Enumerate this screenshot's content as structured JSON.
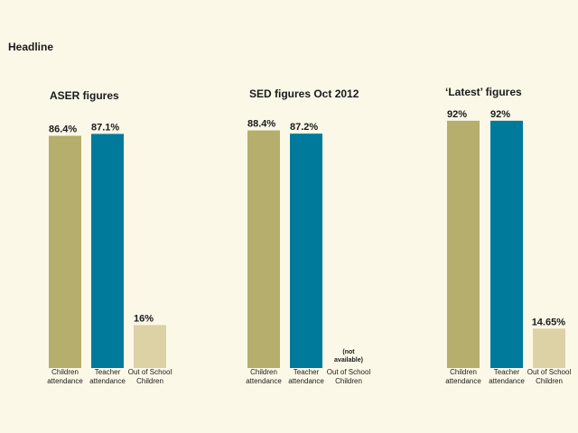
{
  "headline": "Headline",
  "colors": {
    "background": "#fcf8e8",
    "children": "#b5ae6c",
    "teacher": "#007a9b",
    "out_of_school": "#dcd2a6",
    "text": "#1a1a1a"
  },
  "chart_data": [
    {
      "type": "bar",
      "title": "ASER figures",
      "categories": [
        [
          "Children",
          "attendance"
        ],
        [
          "Teacher",
          "attendance"
        ],
        [
          "Out of School",
          "Children"
        ]
      ],
      "values": [
        86.4,
        87.1,
        16
      ],
      "labels": [
        "86.4%",
        "87.1%",
        "16%"
      ],
      "na_text": [],
      "ylim": [
        0,
        100
      ]
    },
    {
      "type": "bar",
      "title": "SED figures Oct 2012",
      "categories": [
        [
          "Children",
          "attendance"
        ],
        [
          "Teacher",
          "attendance"
        ],
        [
          "Out of School",
          "Children"
        ]
      ],
      "values": [
        88.4,
        87.2,
        null
      ],
      "labels": [
        "88.4%",
        "87.2%",
        ""
      ],
      "na_text": [
        "(not",
        "available)"
      ],
      "ylim": [
        0,
        100
      ]
    },
    {
      "type": "bar",
      "title": "‘Latest’ figures",
      "categories": [
        [
          "Children",
          "attendance"
        ],
        [
          "Teacher",
          "attendance"
        ],
        [
          "Out of School",
          "Children"
        ]
      ],
      "values": [
        92,
        92,
        14.65
      ],
      "labels": [
        "92%",
        "92%",
        "14.65%"
      ],
      "na_text": [],
      "ylim": [
        0,
        100
      ]
    }
  ]
}
